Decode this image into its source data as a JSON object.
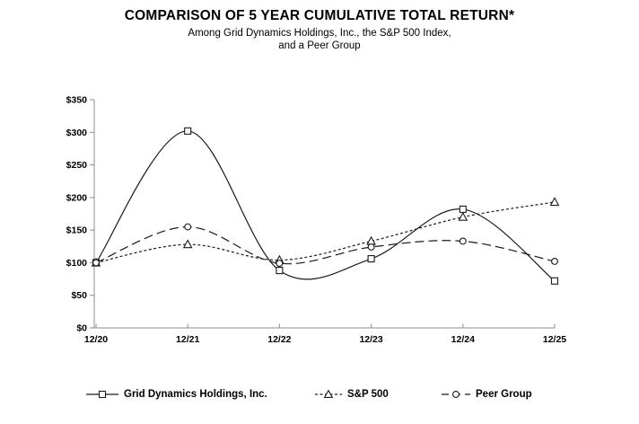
{
  "header": {
    "title": "COMPARISON OF 5 YEAR CUMULATIVE TOTAL RETURN*",
    "subtitle_line1": "Among Grid Dynamics Holdings, Inc., the S&P 500 Index,",
    "subtitle_line2": "and a Peer Group"
  },
  "chart_data": {
    "type": "line",
    "title": "COMPARISON OF 5 YEAR CUMULATIVE TOTAL RETURN*",
    "subtitle": "Among Grid Dynamics Holdings, Inc., the S&P 500 Index, and a Peer Group",
    "categories": [
      "12/20",
      "12/21",
      "12/22",
      "12/23",
      "12/24",
      "12/25"
    ],
    "series": [
      {
        "name": "Grid Dynamics Holdings, Inc.",
        "marker": "square",
        "line_style": "solid",
        "values": [
          100,
          302,
          88,
          106,
          182,
          72
        ]
      },
      {
        "name": "S&P 500",
        "marker": "triangle",
        "line_style": "dotted",
        "values": [
          100,
          128,
          104,
          133,
          170,
          193
        ]
      },
      {
        "name": "Peer Group",
        "marker": "circle",
        "line_style": "dashed",
        "values": [
          100,
          155,
          99,
          124,
          133,
          102
        ]
      }
    ],
    "xlabel": "",
    "ylabel": "",
    "ylim": [
      0,
      350
    ],
    "y_tick_interval": 50,
    "y_tick_labels": [
      "$0",
      "$50",
      "$100",
      "$150",
      "$200",
      "$250",
      "$300",
      "$350"
    ],
    "grid": false,
    "smoothed_lines": true,
    "legend_position": "bottom",
    "colors": {
      "line": "#1a1a1a",
      "axis": "#8c8c8c",
      "marker_fill": "#ffffff",
      "text": "#000000"
    }
  }
}
